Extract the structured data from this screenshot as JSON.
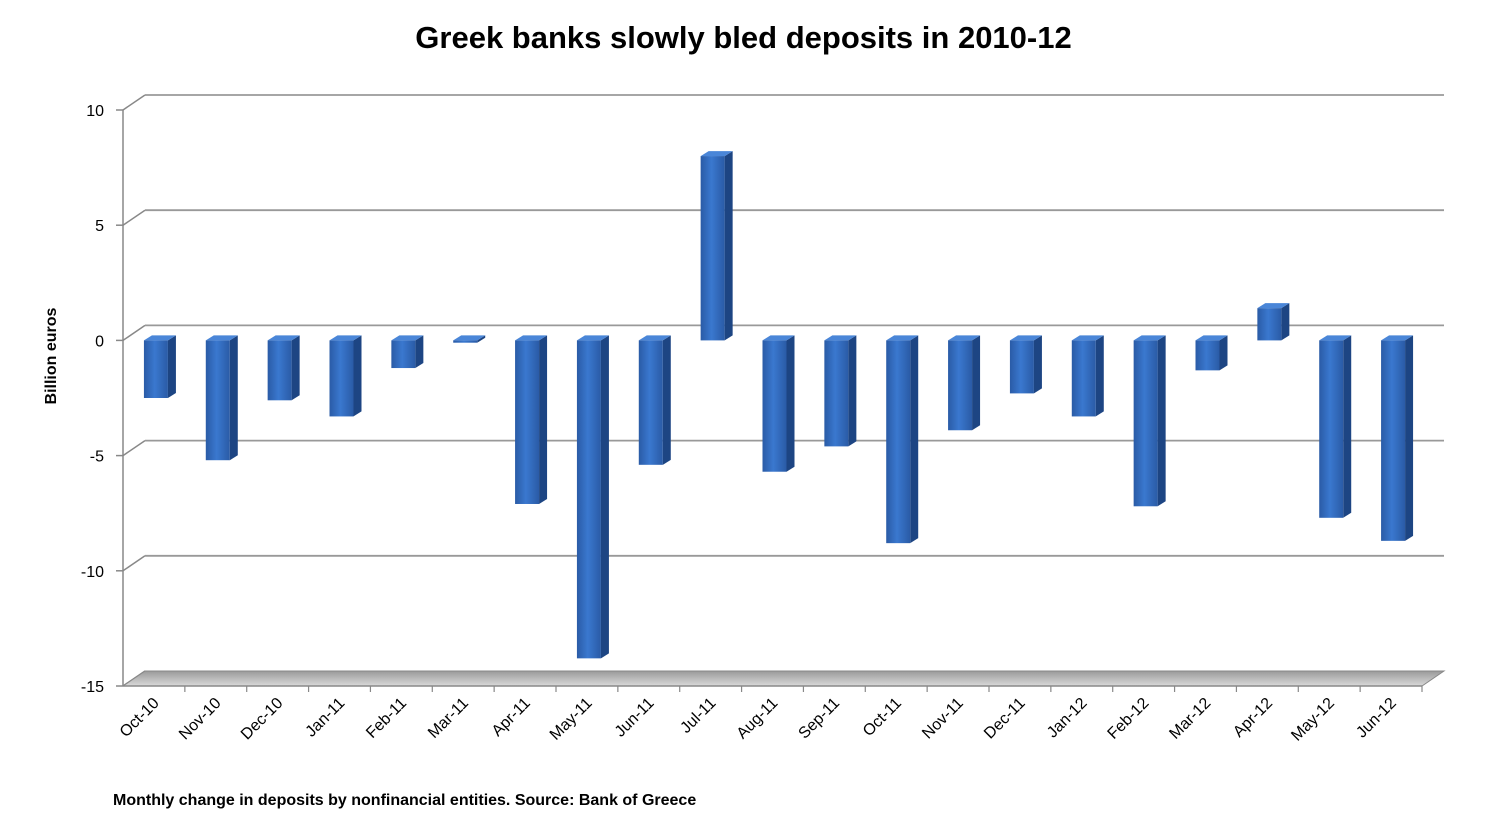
{
  "chart_data": {
    "type": "bar",
    "title": "Greek banks slowly bled deposits in 2010-12",
    "ylabel": "Billion euros",
    "xlabel": "",
    "caption": "Monthly change in deposits by nonfinancial entities. Source: Bank of Greece",
    "ylim": [
      -15,
      10
    ],
    "yticks": [
      10,
      5,
      0,
      -5,
      -10,
      -15
    ],
    "grid": true,
    "bar_color": "#2f64b3",
    "categories": [
      "Oct-10",
      "Nov-10",
      "Dec-10",
      "Jan-11",
      "Feb-11",
      "Mar-11",
      "Apr-11",
      "May-11",
      "Jun-11",
      "Jul-11",
      "Aug-11",
      "Sep-11",
      "Oct-11",
      "Nov-11",
      "Dec-11",
      "Jan-12",
      "Feb-12",
      "Mar-12",
      "Apr-12",
      "May-12",
      "Jun-12"
    ],
    "values": [
      -2.5,
      -5.2,
      -2.6,
      -3.3,
      -1.2,
      -0.1,
      -7.1,
      -13.8,
      -5.4,
      8.0,
      -5.7,
      -4.6,
      -8.8,
      -3.9,
      -2.3,
      -3.3,
      -7.2,
      -1.3,
      1.4,
      -7.7,
      -8.7
    ]
  }
}
